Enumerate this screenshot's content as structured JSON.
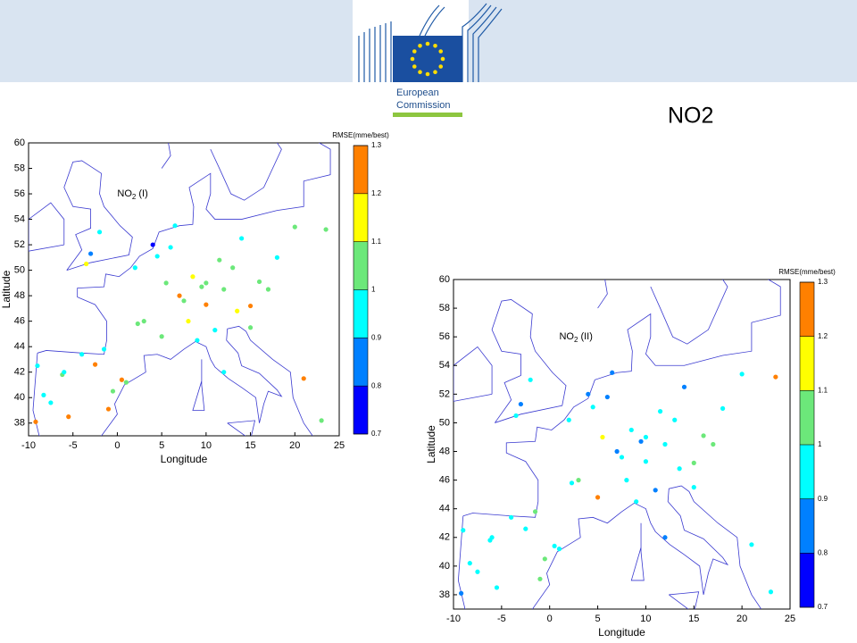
{
  "header": {
    "logo_text": [
      "European",
      "Commission"
    ],
    "slide_title": "NO2"
  },
  "chart_data": [
    {
      "type": "scatter-map",
      "annotation": [
        "NO",
        "2",
        "(I)"
      ],
      "xlabel": "Longitude",
      "ylabel": "Latitude",
      "xlim": [
        -10,
        25
      ],
      "xticks": [
        -10,
        -5,
        0,
        5,
        10,
        15,
        20,
        25
      ],
      "ylim": [
        37,
        60
      ],
      "yticks": [
        38,
        40,
        42,
        44,
        46,
        48,
        50,
        52,
        54,
        56,
        58,
        60
      ],
      "x": [
        -9.2,
        -8.3,
        -7.5,
        -6.2,
        -5.5,
        -4,
        -3.5,
        -2.5,
        -1,
        -0.5,
        0.5,
        1,
        2.3,
        -3,
        4,
        6,
        2,
        5.5,
        7,
        7.5,
        8,
        9,
        10,
        11,
        12,
        13,
        14,
        15,
        16,
        4.5,
        5,
        6.5,
        8.5,
        9.5,
        11.5,
        13.5,
        17,
        18,
        20,
        21,
        15,
        12,
        10,
        -1.5,
        -6,
        -9,
        -2,
        3,
        23,
        23.5
      ],
      "y": [
        38.1,
        40.2,
        39.6,
        41.8,
        38.5,
        43.4,
        50.5,
        42.6,
        39.1,
        40.5,
        41.4,
        41.2,
        45.8,
        51.3,
        52,
        51.8,
        50.2,
        49,
        48,
        47.6,
        46,
        44.5,
        47.3,
        45.3,
        48.5,
        50.2,
        52.5,
        47.2,
        49.1,
        51.1,
        44.8,
        53.5,
        49.5,
        48.7,
        50.8,
        46.8,
        48.5,
        51,
        53.4,
        41.5,
        45.5,
        42,
        49,
        43.8,
        42,
        42.5,
        53,
        46,
        38.2,
        53.2
      ],
      "values": [
        1.25,
        0.95,
        0.95,
        1.05,
        1.25,
        0.95,
        1.15,
        1.25,
        1.25,
        1.05,
        1.25,
        1.05,
        1.05,
        0.85,
        0.75,
        0.95,
        0.95,
        1.05,
        1.25,
        1.05,
        1.15,
        0.95,
        1.25,
        0.95,
        1.05,
        1.05,
        0.95,
        1.25,
        1.05,
        0.95,
        1.05,
        0.95,
        1.15,
        1.05,
        1.05,
        1.15,
        1.05,
        0.95,
        1.05,
        1.25,
        1.05,
        0.95,
        1.05,
        0.95,
        0.95,
        0.95,
        0.95,
        1.05,
        1.05,
        1.05
      ],
      "colorbar": {
        "label": "RMSE(mme/best)",
        "lim": [
          0.7,
          1.3
        ],
        "ticks": [
          0.7,
          0.8,
          0.9,
          1,
          1.1,
          1.2,
          1.3
        ],
        "colors": [
          "#0000ff",
          "#0080ff",
          "#00ffff",
          "#6ce87a",
          "#ffff00",
          "#ff8000"
        ]
      }
    },
    {
      "type": "scatter-map",
      "annotation": [
        "NO",
        "2",
        "(II)"
      ],
      "xlabel": "Longitude",
      "ylabel": "Latitude",
      "xlim": [
        -10,
        25
      ],
      "xticks": [
        -10,
        -5,
        0,
        5,
        10,
        15,
        20,
        25
      ],
      "ylim": [
        37,
        60
      ],
      "yticks": [
        38,
        40,
        42,
        44,
        46,
        48,
        50,
        52,
        54,
        56,
        58,
        60
      ],
      "x": [
        -9.2,
        -8.3,
        -7.5,
        -6.2,
        -5.5,
        -4,
        -3.5,
        -2.5,
        -1,
        -0.5,
        0.5,
        1,
        2.3,
        -3,
        4,
        6,
        2,
        5.5,
        7,
        7.5,
        8,
        9,
        10,
        11,
        12,
        13,
        14,
        15,
        16,
        4.5,
        5,
        6.5,
        8.5,
        9.5,
        11.5,
        13.5,
        17,
        18,
        20,
        21,
        15,
        12,
        10,
        -1.5,
        -6,
        -9,
        -2,
        3,
        23,
        23.5
      ],
      "y": [
        38.1,
        40.2,
        39.6,
        41.8,
        38.5,
        43.4,
        50.5,
        42.6,
        39.1,
        40.5,
        41.4,
        41.2,
        45.8,
        51.3,
        52,
        51.8,
        50.2,
        49,
        48,
        47.6,
        46,
        44.5,
        47.3,
        45.3,
        48.5,
        50.2,
        52.5,
        47.2,
        49.1,
        51.1,
        44.8,
        53.5,
        49.5,
        48.7,
        50.8,
        46.8,
        48.5,
        51,
        53.4,
        41.5,
        45.5,
        42,
        49,
        43.8,
        42,
        42.5,
        53,
        46,
        38.2,
        53.2
      ],
      "values": [
        0.85,
        0.95,
        0.95,
        0.95,
        0.95,
        0.95,
        0.95,
        0.95,
        1.05,
        1.05,
        0.95,
        0.95,
        0.95,
        0.85,
        0.85,
        0.85,
        0.95,
        1.15,
        0.85,
        0.95,
        0.95,
        0.95,
        0.95,
        0.85,
        0.95,
        0.95,
        0.85,
        1.05,
        1.05,
        0.95,
        1.25,
        0.85,
        0.95,
        0.85,
        0.95,
        0.95,
        1.05,
        0.95,
        0.95,
        0.95,
        0.95,
        0.85,
        0.95,
        1.05,
        0.95,
        0.95,
        0.95,
        1.05,
        0.95,
        1.25
      ],
      "colorbar": {
        "label": "RMSE(mme/best)",
        "lim": [
          0.7,
          1.3
        ],
        "ticks": [
          0.7,
          0.8,
          0.9,
          1,
          1.1,
          1.2,
          1.3
        ],
        "colors": [
          "#0000ff",
          "#0080ff",
          "#00ffff",
          "#6ce87a",
          "#ffff00",
          "#ff8000"
        ]
      }
    }
  ]
}
